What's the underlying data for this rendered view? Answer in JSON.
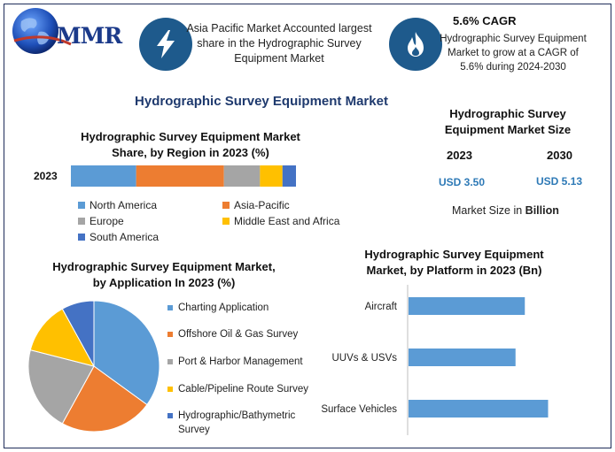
{
  "header": {
    "logo_text": "MMR",
    "info1_text": "Asia Pacific Market Accounted largest share in the Hydrographic Survey Equipment Market",
    "info2_title": "5.6% CAGR",
    "info2_text": "Hydrographic Survey Equipment Market to grow at a CAGR of 5.6% during 2024-2030",
    "bolt_icon": "lightning-bolt-icon",
    "flame_icon": "flame-icon"
  },
  "main_title": "Hydrographic Survey Equipment Market",
  "market_size": {
    "title": "Hydrographic Survey Equipment Market Size",
    "year1": "2023",
    "year2": "2030",
    "value1": "USD 3.50",
    "value2": "USD 5.13",
    "unit_prefix": "Market Size in ",
    "unit_bold": "Billion"
  },
  "colors": {
    "north_america": "#5b9bd5",
    "asia_pacific": "#ed7d31",
    "europe": "#a5a5a5",
    "mea": "#ffc000",
    "south_america": "#4472c4",
    "accent_blue": "#2d79b6",
    "icon_circle": "#1e5a8c"
  },
  "chart_data": [
    {
      "type": "bar",
      "orientation": "horizontal-stacked",
      "title": "Hydrographic Survey Equipment Market Share, by Region in 2023 (%)",
      "categories": [
        "2023"
      ],
      "series": [
        {
          "name": "North America",
          "values": [
            29
          ],
          "color": "#5b9bd5"
        },
        {
          "name": "Asia-Pacific",
          "values": [
            39
          ],
          "color": "#ed7d31"
        },
        {
          "name": "Europe",
          "values": [
            16
          ],
          "color": "#a5a5a5"
        },
        {
          "name": "Middle East and Africa",
          "values": [
            10
          ],
          "color": "#ffc000"
        },
        {
          "name": "South America",
          "values": [
            6
          ],
          "color": "#4472c4"
        }
      ]
    },
    {
      "type": "pie",
      "title": "Hydrographic Survey Equipment Market, by Application In 2023 (%)",
      "labels": [
        "Charting Application",
        "Offshore Oil & Gas Survey",
        "Port & Harbor Management",
        "Cable/Pipeline Route Survey",
        "Hydrographic/Bathymetric Survey"
      ],
      "values": [
        35,
        23,
        21,
        13,
        8
      ],
      "colors": [
        "#5b9bd5",
        "#ed7d31",
        "#a5a5a5",
        "#ffc000",
        "#4472c4"
      ]
    },
    {
      "type": "bar",
      "orientation": "horizontal",
      "title": "Hydrographic Survey Equipment Market, by Platform in 2023 (Bn)",
      "categories": [
        "Aircraft",
        "UUVs & USVs",
        "Surface Vehicles"
      ],
      "values": [
        1.0,
        0.92,
        1.2
      ],
      "xlim": [
        0,
        1.6
      ],
      "color": "#5b9bd5"
    }
  ]
}
